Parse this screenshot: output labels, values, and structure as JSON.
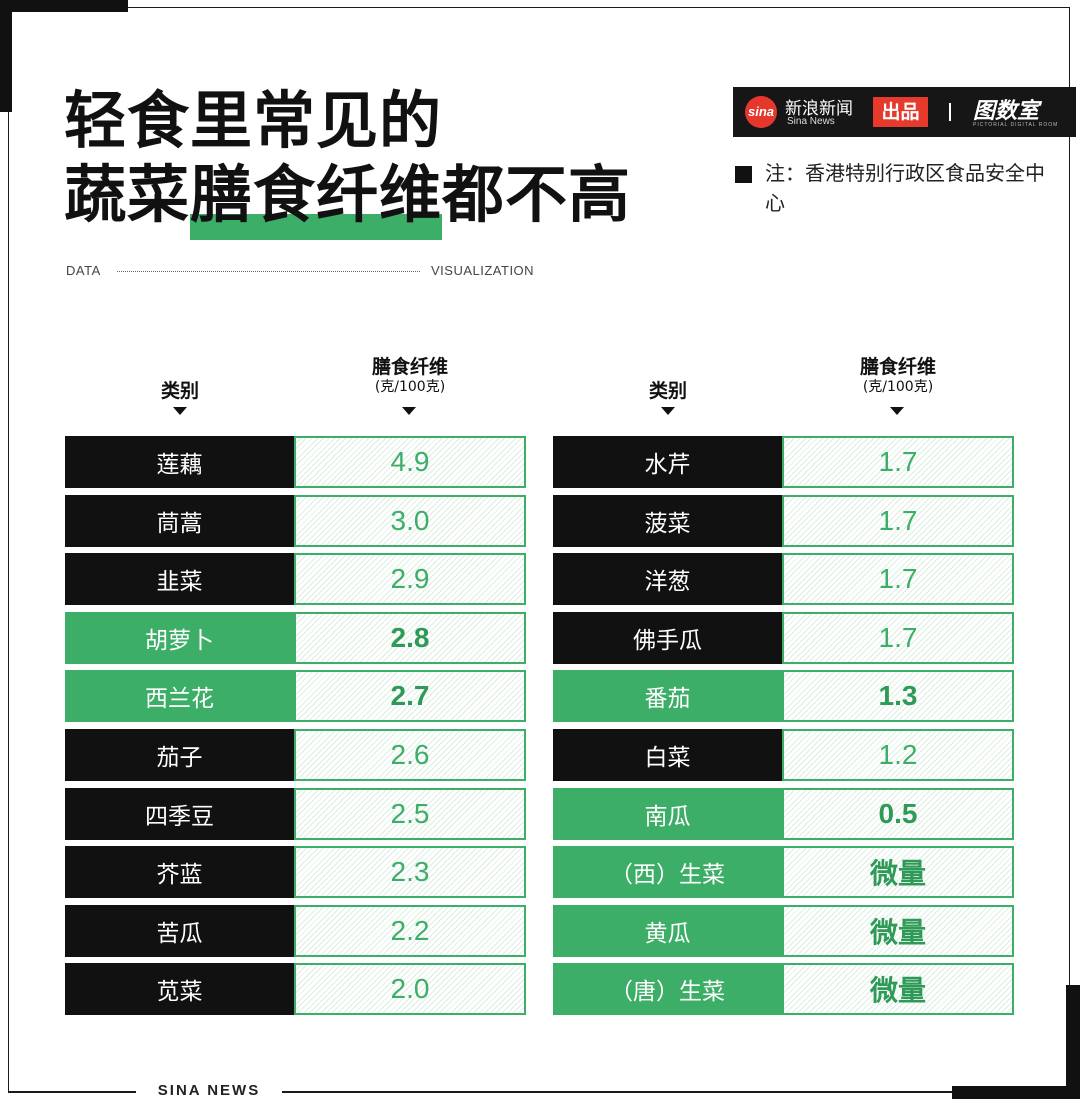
{
  "title": {
    "line1": "轻食里常见的",
    "line2_pre": "蔬菜",
    "line2_highlight": "膳食纤维",
    "line2_post": "都不高"
  },
  "subtitle": {
    "left": "DATA",
    "right": "VISUALIZATION"
  },
  "brand": {
    "sina_logo": "sina",
    "sina_cn": "新浪新闻",
    "sina_en": "Sina News",
    "chupin": "出品",
    "room": "图数室",
    "room_en": "PICTORIAL DIGITAL ROOM"
  },
  "note": "注：香港特别行政区食品安全中心",
  "footer": "SINA NEWS",
  "colors": {
    "accent": "#3dae67",
    "dark": "#111111",
    "brand_red": "#e53a2c"
  },
  "headers": {
    "category": "类别",
    "fiber": "膳食纤维",
    "unit": "(克/100克)"
  },
  "chart_data": {
    "type": "table",
    "columns": [
      "类别",
      "膳食纤维 (克/100克)"
    ],
    "left_table": [
      {
        "category": "莲藕",
        "value": "4.9",
        "highlight": false
      },
      {
        "category": "茼蒿",
        "value": "3.0",
        "highlight": false
      },
      {
        "category": "韭菜",
        "value": "2.9",
        "highlight": false
      },
      {
        "category": "胡萝卜",
        "value": "2.8",
        "highlight": true
      },
      {
        "category": "西兰花",
        "value": "2.7",
        "highlight": true
      },
      {
        "category": "茄子",
        "value": "2.6",
        "highlight": false
      },
      {
        "category": "四季豆",
        "value": "2.5",
        "highlight": false
      },
      {
        "category": "芥蓝",
        "value": "2.3",
        "highlight": false
      },
      {
        "category": "苦瓜",
        "value": "2.2",
        "highlight": false
      },
      {
        "category": "苋菜",
        "value": "2.0",
        "highlight": false
      }
    ],
    "right_table": [
      {
        "category": "水芹",
        "value": "1.7",
        "highlight": false
      },
      {
        "category": "菠菜",
        "value": "1.7",
        "highlight": false
      },
      {
        "category": "洋葱",
        "value": "1.7",
        "highlight": false
      },
      {
        "category": "佛手瓜",
        "value": "1.7",
        "highlight": false
      },
      {
        "category": "番茄",
        "value": "1.3",
        "highlight": true
      },
      {
        "category": "白菜",
        "value": "1.2",
        "highlight": false
      },
      {
        "category": "南瓜",
        "value": "0.5",
        "highlight": true
      },
      {
        "category": "（西）生菜",
        "value": "微量",
        "highlight": true
      },
      {
        "category": "黄瓜",
        "value": "微量",
        "highlight": true
      },
      {
        "category": "（唐）生菜",
        "value": "微量",
        "highlight": true
      }
    ]
  }
}
